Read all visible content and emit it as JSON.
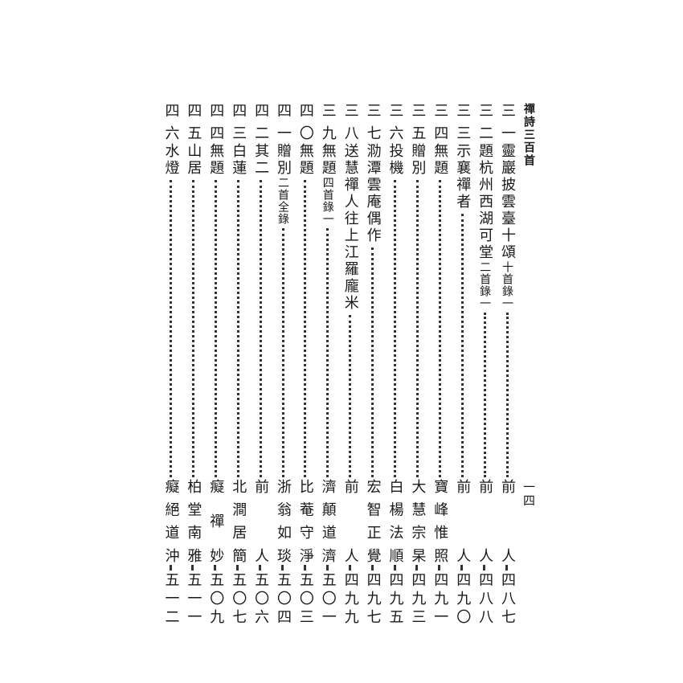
{
  "header": {
    "title": "禪詩三百首",
    "page_number": "一四"
  },
  "entries": [
    {
      "num": "三一",
      "title": "靈巖披雲臺十頌",
      "note": "十首錄一",
      "author": "前人",
      "page": "四八七"
    },
    {
      "num": "三二",
      "title": "題杭州西湖可堂",
      "note": "二首錄一",
      "author": "前人",
      "page": "四八八"
    },
    {
      "num": "三三",
      "title": "示襄禪者",
      "note": "",
      "author": "前人",
      "page": "四九〇"
    },
    {
      "num": "三四",
      "title": "無題",
      "note": "",
      "author": "寶峰惟照",
      "page": "四九一"
    },
    {
      "num": "三五",
      "title": "贈別",
      "note": "",
      "author": "大慧宗杲",
      "page": "四九三"
    },
    {
      "num": "三六",
      "title": "投機",
      "note": "",
      "author": "白楊法順",
      "page": "四九五"
    },
    {
      "num": "三七",
      "title": "泐潭雲庵偶作",
      "note": "",
      "author": "宏智正覺",
      "page": "四九七"
    },
    {
      "num": "三八",
      "title": "送慧禪人往上江羅龐米",
      "note": "",
      "author": "前人",
      "page": "四九九"
    },
    {
      "num": "三九",
      "title": "無題",
      "note": "四首錄一",
      "author": "濟顛道濟",
      "page": "五〇一"
    },
    {
      "num": "四〇",
      "title": "無題",
      "note": "",
      "author": "比菴守淨",
      "page": "五〇三"
    },
    {
      "num": "四一",
      "title": "贈別",
      "note": "二首全錄",
      "author": "浙翁如琰",
      "page": "五〇四"
    },
    {
      "num": "四二",
      "title": "其二",
      "note": "",
      "author": "前人",
      "page": "五〇六"
    },
    {
      "num": "四三",
      "title": "白蓮",
      "note": "",
      "author": "北澗居簡",
      "page": "五〇七"
    },
    {
      "num": "四四",
      "title": "無題",
      "note": "",
      "author": "癡禪妙",
      "page": "五〇九"
    },
    {
      "num": "四五",
      "title": "山居",
      "note": "",
      "author": "柏堂南雅",
      "page": "五一一"
    },
    {
      "num": "四六",
      "title": "水燈",
      "note": "",
      "author": "癡絕道沖",
      "page": "五一二"
    }
  ]
}
